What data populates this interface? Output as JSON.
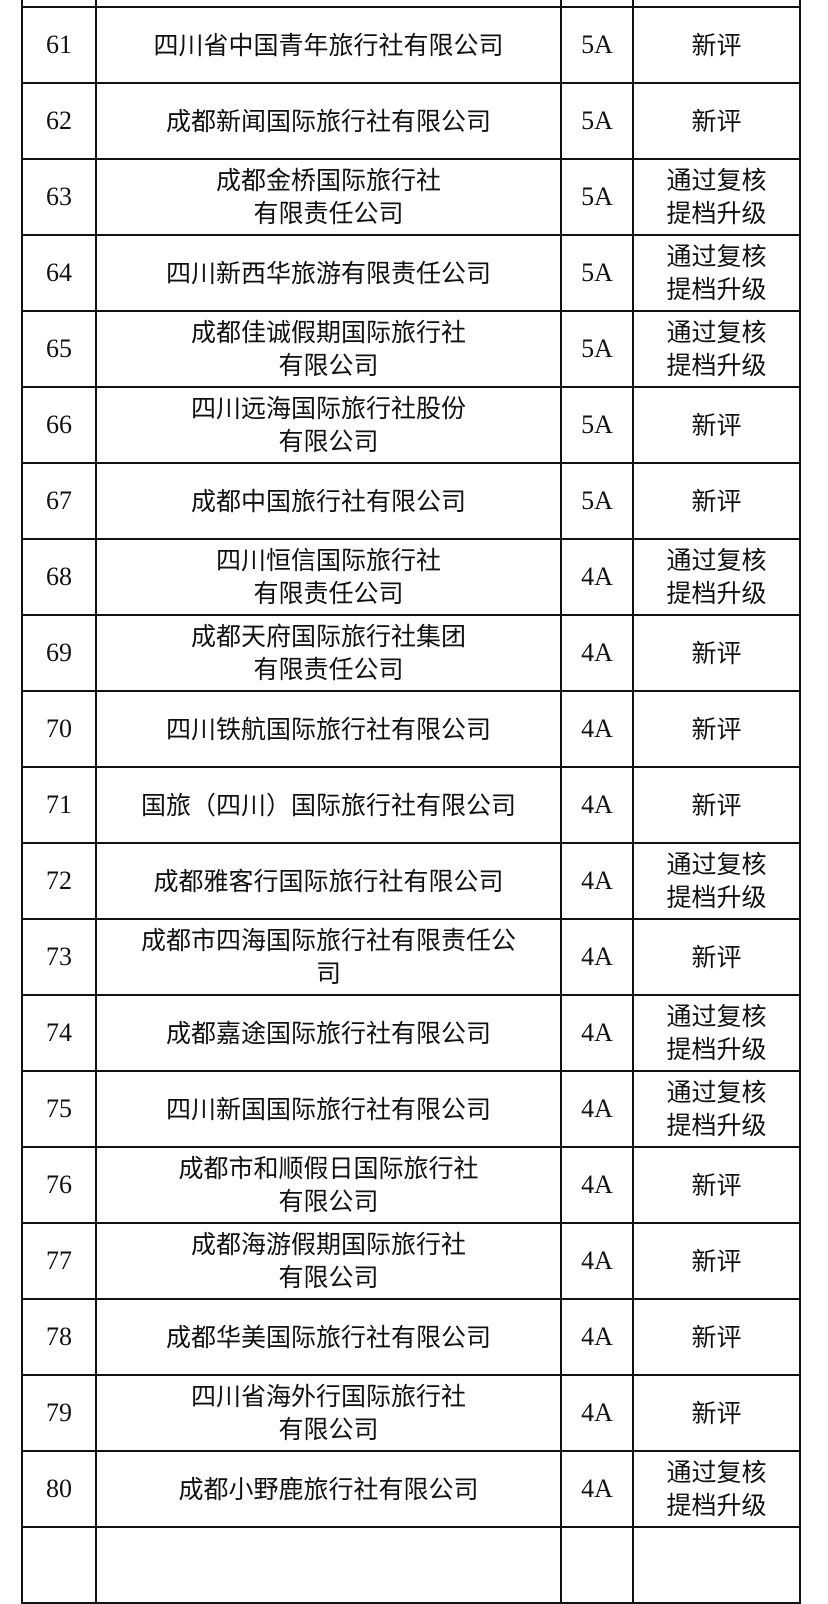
{
  "rows": [
    {
      "no": "61",
      "name": "四川省中国青年旅行社有限公司",
      "level": "5A",
      "type": "新评"
    },
    {
      "no": "62",
      "name": "成都新闻国际旅行社有限公司",
      "level": "5A",
      "type": "新评"
    },
    {
      "no": "63",
      "name": "成都金桥国际旅行社\n有限责任公司",
      "level": "5A",
      "type": "通过复核\n提档升级"
    },
    {
      "no": "64",
      "name": "四川新西华旅游有限责任公司",
      "level": "5A",
      "type": "通过复核\n提档升级"
    },
    {
      "no": "65",
      "name": "成都佳诚假期国际旅行社\n有限公司",
      "level": "5A",
      "type": "通过复核\n提档升级"
    },
    {
      "no": "66",
      "name": "四川远海国际旅行社股份\n有限公司",
      "level": "5A",
      "type": "新评"
    },
    {
      "no": "67",
      "name": "成都中国旅行社有限公司",
      "level": "5A",
      "type": "新评"
    },
    {
      "no": "68",
      "name": "四川恒信国际旅行社\n有限责任公司",
      "level": "4A",
      "type": "通过复核\n提档升级"
    },
    {
      "no": "69",
      "name": "成都天府国际旅行社集团\n有限责任公司",
      "level": "4A",
      "type": "新评"
    },
    {
      "no": "70",
      "name": "四川铁航国际旅行社有限公司",
      "level": "4A",
      "type": "新评"
    },
    {
      "no": "71",
      "name": "国旅（四川）国际旅行社有限公司",
      "level": "4A",
      "type": "新评"
    },
    {
      "no": "72",
      "name": "成都雅客行国际旅行社有限公司",
      "level": "4A",
      "type": "通过复核\n提档升级"
    },
    {
      "no": "73",
      "name": "成都市四海国际旅行社有限责任公\n司",
      "level": "4A",
      "type": "新评"
    },
    {
      "no": "74",
      "name": "成都嘉途国际旅行社有限公司",
      "level": "4A",
      "type": "通过复核\n提档升级"
    },
    {
      "no": "75",
      "name": "四川新国国际旅行社有限公司",
      "level": "4A",
      "type": "通过复核\n提档升级"
    },
    {
      "no": "76",
      "name": "成都市和顺假日国际旅行社\n有限公司",
      "level": "4A",
      "type": "新评"
    },
    {
      "no": "77",
      "name": "成都海游假期国际旅行社\n有限公司",
      "level": "4A",
      "type": "新评"
    },
    {
      "no": "78",
      "name": "成都华美国际旅行社有限公司",
      "level": "4A",
      "type": "新评"
    },
    {
      "no": "79",
      "name": "四川省海外行国际旅行社\n有限公司",
      "level": "4A",
      "type": "新评"
    },
    {
      "no": "80",
      "name": "成都小野鹿旅行社有限公司",
      "level": "4A",
      "type": "通过复核\n提档升级"
    }
  ]
}
